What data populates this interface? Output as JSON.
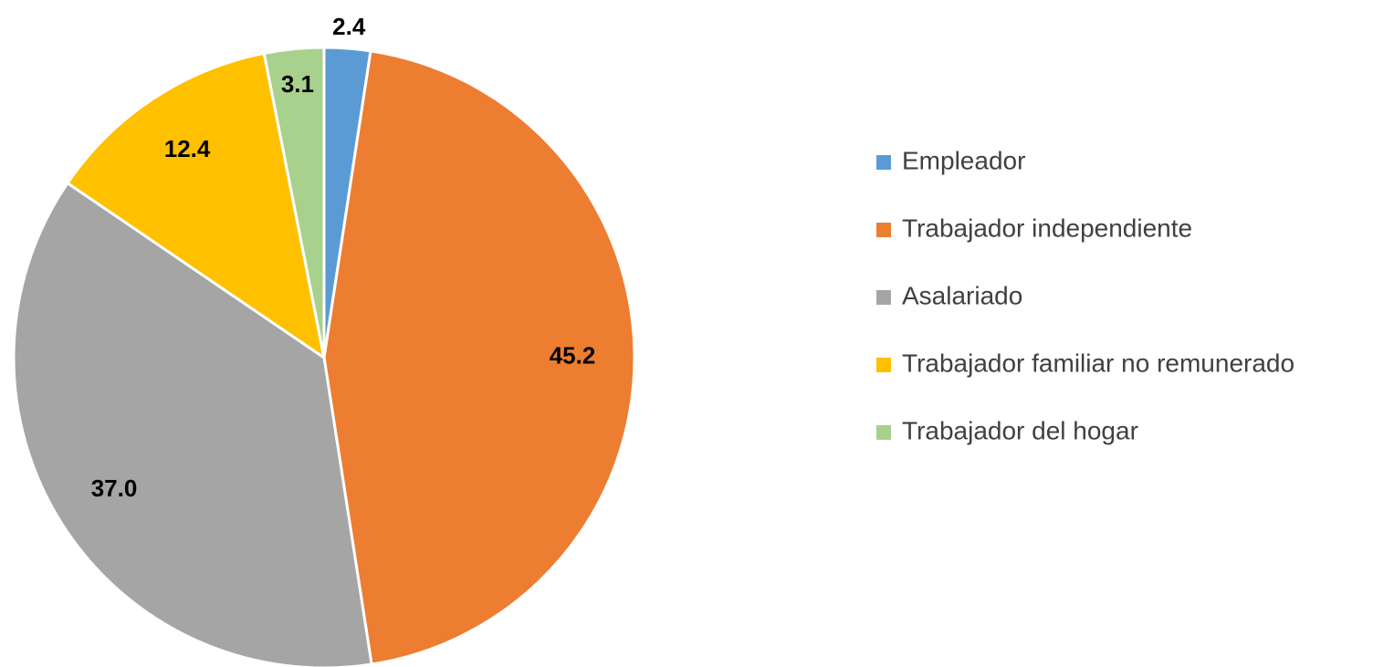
{
  "chart_data": {
    "type": "pie",
    "categories": [
      "Empleador",
      "Trabajador independiente",
      "Asalariado",
      "Trabajador familiar no remunerado",
      "Trabajador del hogar"
    ],
    "values": [
      2.4,
      45.2,
      37.0,
      12.4,
      3.1
    ],
    "value_labels": [
      "2.4",
      "45.2",
      "37.0",
      "12.4",
      "3.1"
    ],
    "colors": [
      "#5b9bd5",
      "#ed7d31",
      "#a5a5a5",
      "#ffc000",
      "#a9d18e"
    ],
    "legend": "right"
  }
}
